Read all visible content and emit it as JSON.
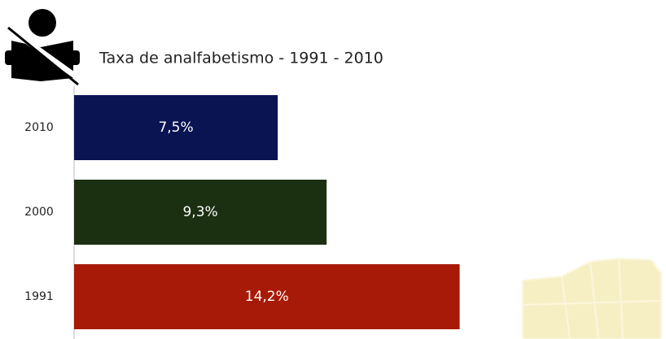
{
  "chart_data": {
    "type": "bar",
    "orientation": "horizontal",
    "title": "Taxa de analfabetismo - 1991 - 2010",
    "categories": [
      "2010",
      "2000",
      "1991"
    ],
    "values": [
      7.5,
      9.3,
      14.2
    ],
    "value_labels": [
      "7,5%",
      "9,3%",
      "14,2%"
    ],
    "colors": [
      "#0b1452",
      "#1b3011",
      "#a81a08"
    ]
  }
}
